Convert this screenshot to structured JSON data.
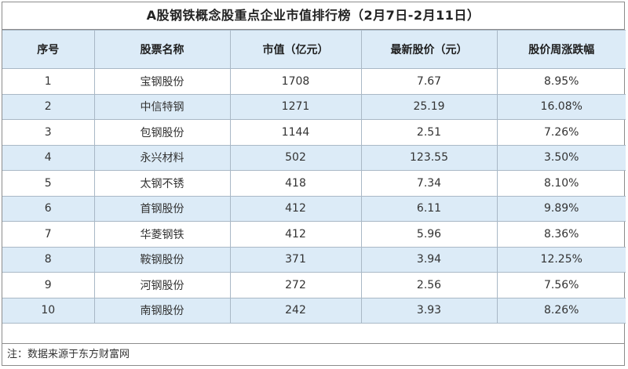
{
  "title": "A股钢铁概念股重点企业市值排行榜（2月7日-2月11日）",
  "colors": {
    "header_bg": "#dcebf7",
    "alt_row_bg": "#dcebf7",
    "border": "#a9b8c6"
  },
  "table": {
    "headers": [
      "序号",
      "股票名称",
      "市值（亿元）",
      "最新股价（元）",
      "股价周涨跌幅"
    ],
    "rows": [
      [
        "1",
        "宝钢股份",
        "1708",
        "7.67",
        "8.95%"
      ],
      [
        "2",
        "中信特钢",
        "1271",
        "25.19",
        "16.08%"
      ],
      [
        "3",
        "包钢股份",
        "1144",
        "2.51",
        "7.26%"
      ],
      [
        "4",
        "永兴材料",
        "502",
        "123.55",
        "3.50%"
      ],
      [
        "5",
        "太钢不锈",
        "418",
        "7.34",
        "8.10%"
      ],
      [
        "6",
        "首钢股份",
        "412",
        "6.11",
        "9.89%"
      ],
      [
        "7",
        "华菱钢铁",
        "412",
        "5.96",
        "8.36%"
      ],
      [
        "8",
        "鞍钢股份",
        "371",
        "3.94",
        "12.25%"
      ],
      [
        "9",
        "河钢股份",
        "272",
        "2.56",
        "7.56%"
      ],
      [
        "10",
        "南钢股份",
        "242",
        "3.93",
        "8.26%"
      ]
    ]
  },
  "note": "注：数据来源于东方财富网"
}
